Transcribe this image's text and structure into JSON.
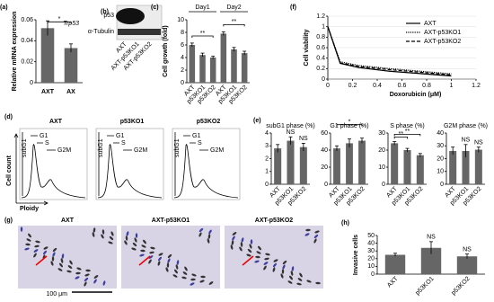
{
  "chart_data": [
    {
      "type": "bar",
      "panel": "(a)",
      "title": "Trp53",
      "ylabel": "Relative mRNA expression",
      "categories": [
        "AXT",
        "AX"
      ],
      "values": [
        0.052,
        0.033
      ],
      "errors": [
        0.007,
        0.004
      ],
      "annotations": [
        null,
        "*"
      ],
      "ylim": [
        0,
        0.06
      ],
      "yticks": [
        0,
        0.02,
        0.04,
        0.06
      ],
      "color": "#666666"
    },
    {
      "type": "blot",
      "panel": "(b)",
      "rows": [
        "p53",
        "α-Tubulin"
      ],
      "lanes": [
        "AXT",
        "AXT-p53KO1",
        "AXT-p53KO2"
      ]
    },
    {
      "type": "bar",
      "panel": "(c)",
      "ylabel": "Cell growth (fold)",
      "groups": [
        "Day1",
        "Day2"
      ],
      "categories": [
        "AXT",
        "p53KO1",
        "p53KO2",
        "AXT",
        "p53KO1",
        "p53KO2"
      ],
      "values": [
        6.0,
        4.4,
        4.0,
        7.8,
        5.3,
        4.7
      ],
      "errors": [
        0.3,
        0.3,
        0.2,
        0.3,
        0.3,
        0.3
      ],
      "annotations": [
        null,
        null,
        "**",
        null,
        null,
        "**"
      ],
      "ylim": [
        0,
        10
      ],
      "yticks": [
        0,
        2,
        4,
        6,
        8,
        10
      ],
      "color": "#666666"
    },
    {
      "type": "line",
      "panel": "(f)",
      "ylabel": "Cell viability",
      "xlabel": "Doxorubicin (μM)",
      "x": [
        0,
        0.1,
        0.25,
        0.5,
        1.0
      ],
      "series": [
        {
          "name": "AXT",
          "color": "#000000",
          "dash": "solid",
          "values": [
            1.0,
            0.3,
            0.22,
            0.15,
            0.06
          ]
        },
        {
          "name": "AXT-p53KO1",
          "color": "#000000",
          "dash": "dotted",
          "values": [
            1.0,
            0.33,
            0.26,
            0.2,
            0.1
          ]
        },
        {
          "name": "AXT-p53KO2",
          "color": "#000000",
          "dash": "dashed",
          "values": [
            1.0,
            0.31,
            0.24,
            0.18,
            0.08
          ]
        }
      ],
      "xlim": [
        0,
        1.2
      ],
      "xticks": [
        0,
        0.2,
        0.4,
        0.6,
        0.8,
        1,
        1.2
      ],
      "ylim": [
        0,
        1.2
      ],
      "yticks": [
        0,
        0.2,
        0.4,
        0.6,
        0.8,
        1,
        1.2
      ]
    },
    {
      "type": "flow",
      "panel": "(d)",
      "ylabel": "Cell count",
      "xlabel": "Ploidy",
      "titles": [
        "AXT",
        "p53KO1",
        "p53KO2"
      ],
      "gates": [
        "subG1",
        "G1",
        "S",
        "G2M"
      ]
    },
    {
      "type": "bar",
      "panel": "(e)",
      "title": "subG1 phase (%)",
      "categories": [
        "AXT",
        "p53KO1",
        "p53KO2"
      ],
      "values": [
        2.8,
        3.4,
        2.9
      ],
      "errors": [
        0.3,
        0.3,
        0.3
      ],
      "annotations": [
        null,
        "NS",
        "NS"
      ],
      "ylim": [
        0,
        4
      ],
      "yticks": [
        0,
        1,
        2,
        3,
        4
      ],
      "color": "#666666"
    },
    {
      "type": "bar",
      "title": "G1 phase (%)",
      "categories": [
        "AXT",
        "p53KO1",
        "p53KO2"
      ],
      "values": [
        42,
        48,
        51
      ],
      "errors": [
        3,
        5,
        3
      ],
      "annotations": [
        null,
        null,
        "*"
      ],
      "ylim": [
        0,
        60
      ],
      "yticks": [
        0,
        20,
        40,
        60
      ],
      "color": "#666666"
    },
    {
      "type": "bar",
      "title": "S phase (%)",
      "categories": [
        "AXT",
        "p53KO1",
        "p53KO2"
      ],
      "values": [
        24,
        20,
        17
      ],
      "errors": [
        1,
        1,
        1
      ],
      "annotations": [
        null,
        "**",
        "**"
      ],
      "ylim": [
        0,
        30
      ],
      "yticks": [
        0,
        10,
        20,
        30
      ],
      "color": "#666666"
    },
    {
      "type": "bar",
      "title": "G2M phase (%)",
      "categories": [
        "AXT",
        "p53KO1",
        "p53KO2"
      ],
      "values": [
        26,
        26,
        27
      ],
      "errors": [
        3,
        5,
        2
      ],
      "annotations": [
        null,
        "NS",
        "NS"
      ],
      "ylim": [
        0,
        40
      ],
      "yticks": [
        0,
        10,
        20,
        30,
        40
      ],
      "color": "#666666"
    },
    {
      "type": "micrograph",
      "panel": "(g)",
      "titles": [
        "AXT",
        "AXT-p53KO1",
        "AXT-p53KO2"
      ],
      "scale": "100 μm"
    },
    {
      "type": "bar",
      "panel": "(h)",
      "ylabel": "Invasive cells",
      "categories": [
        "AXT",
        "p53KO1",
        "p53KO2"
      ],
      "values": [
        25,
        34,
        23
      ],
      "errors": [
        2,
        8,
        3
      ],
      "annotations": [
        null,
        "NS",
        "NS"
      ],
      "ylim": [
        0,
        50
      ],
      "yticks": [
        0,
        10,
        20,
        30,
        40,
        50
      ],
      "color": "#666666"
    }
  ]
}
